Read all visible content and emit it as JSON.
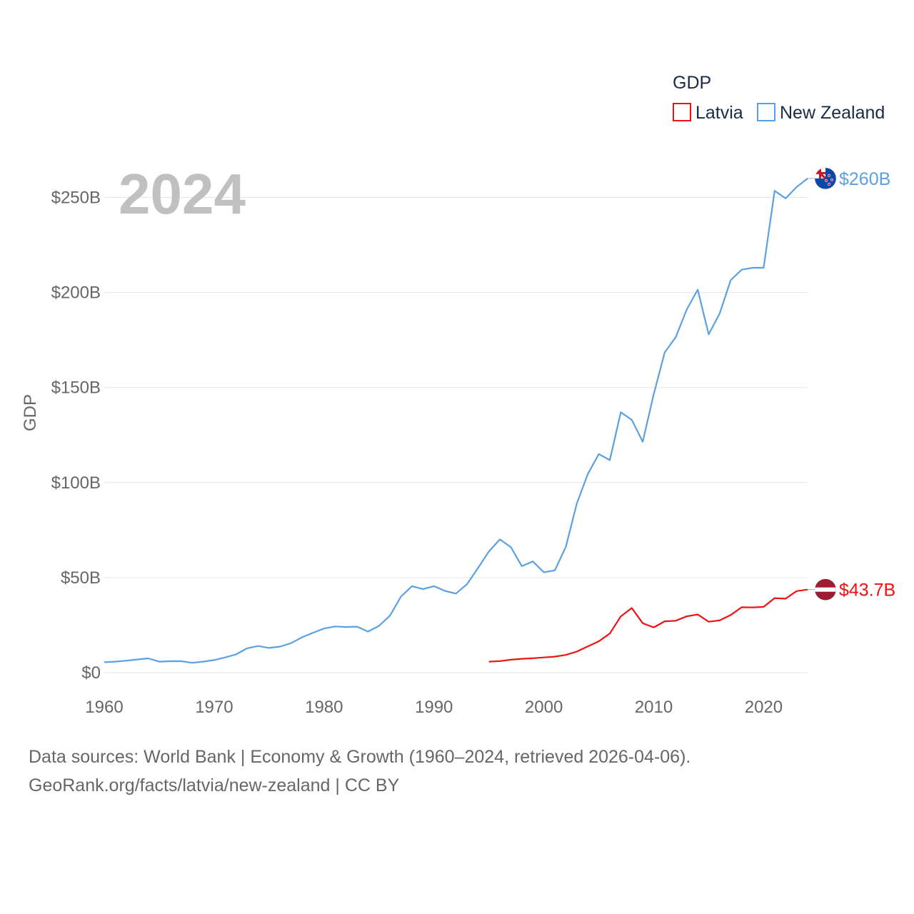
{
  "chart_data": {
    "type": "line",
    "title": "GDP",
    "ylabel": "GDP",
    "xlabel": "",
    "current_year": "2024",
    "ylim": [
      0,
      270
    ],
    "xlim": [
      1960,
      2024
    ],
    "y_ticks": [
      {
        "value": 0,
        "label": "$0"
      },
      {
        "value": 50,
        "label": "$50B"
      },
      {
        "value": 100,
        "label": "$100B"
      },
      {
        "value": 150,
        "label": "$150B"
      },
      {
        "value": 200,
        "label": "$200B"
      },
      {
        "value": 250,
        "label": "$250B"
      }
    ],
    "x_ticks": [
      {
        "value": 1960,
        "label": "1960"
      },
      {
        "value": 1970,
        "label": "1970"
      },
      {
        "value": 1980,
        "label": "1980"
      },
      {
        "value": 1990,
        "label": "1990"
      },
      {
        "value": 2000,
        "label": "2000"
      },
      {
        "value": 2010,
        "label": "2010"
      },
      {
        "value": 2020,
        "label": "2020"
      }
    ],
    "legend_placement": "top-right",
    "series": [
      {
        "name": "Latvia",
        "color": "#ee1111",
        "end_label": "$43.7B",
        "flag": "latvia-flag-icon",
        "x": [
          1995,
          1996,
          1997,
          1998,
          1999,
          2000,
          2001,
          2002,
          2003,
          2004,
          2005,
          2006,
          2007,
          2008,
          2009,
          2010,
          2011,
          2012,
          2013,
          2014,
          2015,
          2016,
          2017,
          2018,
          2019,
          2020,
          2021,
          2022,
          2023,
          2024
        ],
        "values": [
          5.8,
          6.1,
          6.8,
          7.3,
          7.6,
          8.0,
          8.4,
          9.3,
          11.1,
          13.8,
          16.5,
          20.6,
          29.6,
          34.0,
          26.0,
          23.8,
          27.0,
          27.3,
          29.6,
          30.6,
          26.8,
          27.5,
          30.3,
          34.4,
          34.3,
          34.6,
          39.2,
          38.9,
          42.9,
          43.7
        ]
      },
      {
        "name": "New Zealand",
        "color": "#5aa1e3",
        "end_label": "$260B",
        "flag": "new-zealand-flag-icon",
        "x": [
          1960,
          1961,
          1962,
          1963,
          1964,
          1965,
          1966,
          1967,
          1968,
          1969,
          1970,
          1971,
          1972,
          1973,
          1974,
          1975,
          1976,
          1977,
          1978,
          1979,
          1980,
          1981,
          1982,
          1983,
          1984,
          1985,
          1986,
          1987,
          1988,
          1989,
          1990,
          1991,
          1992,
          1993,
          1994,
          1995,
          1996,
          1997,
          1998,
          1999,
          2000,
          2001,
          2002,
          2003,
          2004,
          2005,
          2006,
          2007,
          2008,
          2009,
          2010,
          2011,
          2012,
          2013,
          2014,
          2015,
          2016,
          2017,
          2018,
          2019,
          2020,
          2021,
          2022,
          2023,
          2024
        ],
        "values": [
          5.5,
          5.8,
          6.3,
          6.9,
          7.5,
          5.8,
          6.0,
          6.0,
          5.2,
          5.8,
          6.6,
          8.0,
          9.6,
          12.8,
          14.0,
          13.0,
          13.7,
          15.5,
          18.6,
          21.0,
          23.2,
          24.3,
          24.0,
          24.2,
          21.6,
          24.6,
          30.0,
          40.0,
          45.5,
          44.0,
          45.5,
          43.0,
          41.6,
          46.5,
          55.0,
          63.8,
          70.1,
          66.0,
          56.0,
          58.5,
          52.8,
          53.8,
          66.2,
          89.0,
          104.5,
          115.0,
          111.8,
          137.0,
          133.0,
          121.5,
          146.5,
          168.5,
          176.5,
          191.0,
          201.5,
          178.0,
          189.0,
          206.5,
          212.0,
          213.0,
          213.0,
          253.5,
          249.5,
          255.5,
          260.0
        ]
      }
    ]
  },
  "footer": {
    "line1": "Data sources: World Bank | Economy & Growth (1960–2024, retrieved 2026-04-06).",
    "line2": "GeoRank.org/facts/latvia/new-zealand | CC BY"
  }
}
